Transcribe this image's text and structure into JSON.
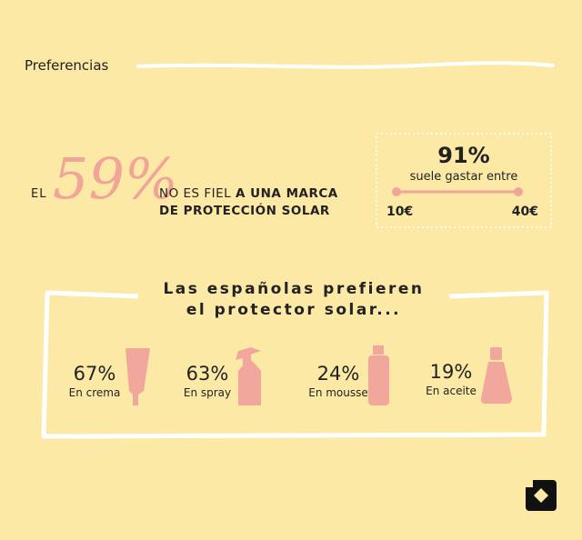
{
  "header": {
    "title": "Preferencias"
  },
  "loyalty": {
    "prefix": "EL",
    "value": "59%",
    "line1_light": "NO ES FIEL",
    "line1_bold": "A UNA MARCA",
    "line2": "DE PROTECCIÓN SOLAR"
  },
  "spending": {
    "value": "91%",
    "caption": "suele gastar entre",
    "min": "10€",
    "max": "40€"
  },
  "section": {
    "title_line1": "Las españolas prefieren",
    "title_line2": "el protector solar..."
  },
  "products": [
    {
      "value": "67%",
      "label": "En crema"
    },
    {
      "value": "63%",
      "label": "En spray"
    },
    {
      "value": "24%",
      "label": "En mousse"
    },
    {
      "value": "19%",
      "label": "En aceite"
    }
  ]
}
